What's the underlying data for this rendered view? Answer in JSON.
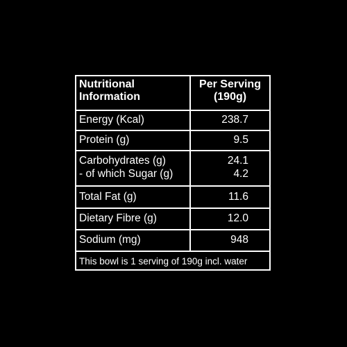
{
  "table": {
    "header": [
      [
        "Nutritional",
        "Information"
      ],
      [
        "Per Serving",
        "(190g)"
      ]
    ],
    "rows": [
      {
        "label": "Energy (Kcal)",
        "value": "238.7"
      },
      {
        "label": "Protein (g)",
        "value": "9.5"
      },
      {
        "label": "Carbohydrates (g)",
        "value": "24.1",
        "sub_label": "- of which Sugar (g)",
        "sub_value": "4.2"
      },
      {
        "label": "Total Fat (g)",
        "value": "11.6"
      },
      {
        "label": "Dietary Fibre (g)",
        "value": "12.0"
      },
      {
        "label": "Sodium (mg)",
        "value": "948"
      }
    ],
    "footer": "This bowl is 1 serving of 190g incl. water"
  }
}
